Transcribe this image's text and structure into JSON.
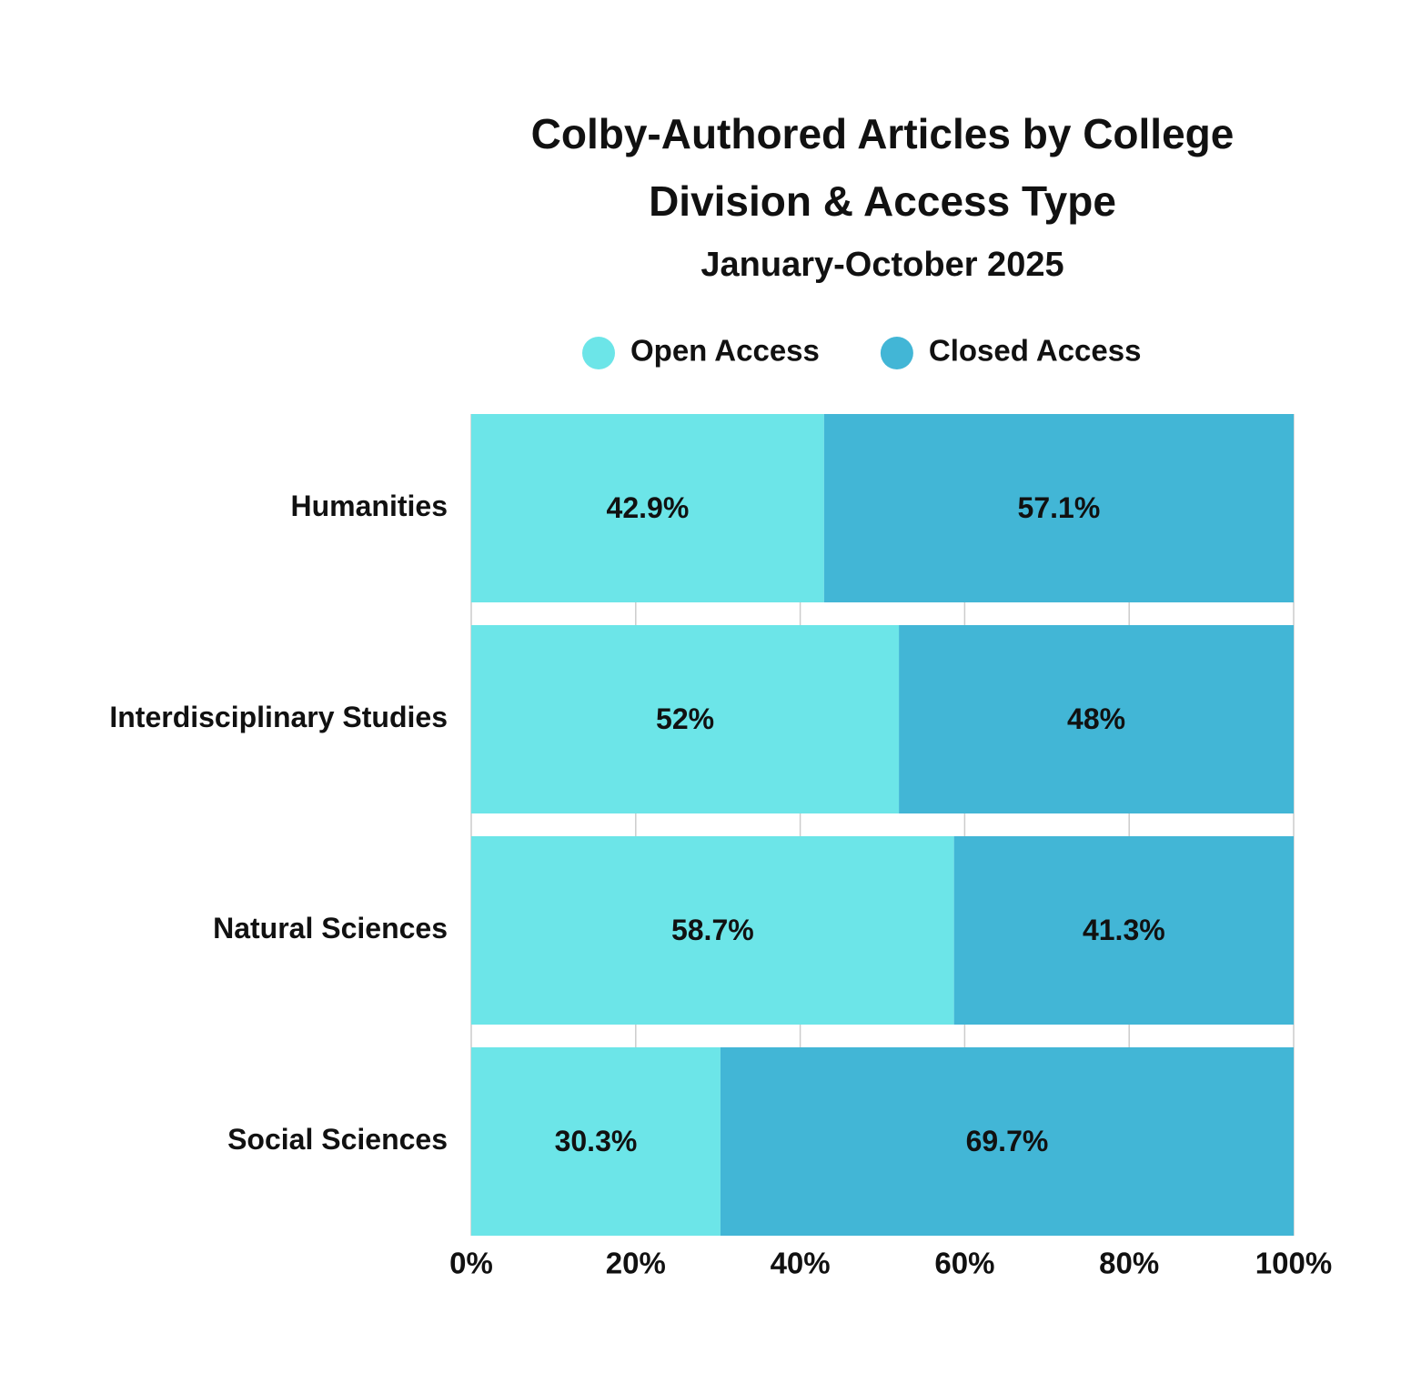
{
  "chart_data": {
    "type": "stacked_barh",
    "title": "Colby-Authored Articles by College Division & Access Type",
    "subtitle": "January-October 2025",
    "categories": [
      "Humanities",
      "Interdisciplinary Studies",
      "Natural Sciences",
      "Social Sciences"
    ],
    "series": [
      {
        "name": "Open Access",
        "color": "#6ce5e8",
        "values": [
          42.9,
          52,
          58.7,
          30.3
        ],
        "value_labels": [
          "42.9%",
          "52%",
          "58.7%",
          "30.3%"
        ]
      },
      {
        "name": "Closed Access",
        "color": "#42b6d6",
        "values": [
          57.1,
          48,
          41.3,
          69.7
        ],
        "value_labels": [
          "57.1%",
          "48%",
          "41.3%",
          "69.7%"
        ]
      }
    ],
    "xlim": [
      0,
      100
    ],
    "xticks": [
      {
        "value": 0,
        "label": "0%"
      },
      {
        "value": 20,
        "label": "20%"
      },
      {
        "value": 40,
        "label": "40%"
      },
      {
        "value": 60,
        "label": "60%"
      },
      {
        "value": 80,
        "label": "80%"
      },
      {
        "value": 100,
        "label": "100%"
      }
    ],
    "grid": true,
    "legend": "top"
  }
}
